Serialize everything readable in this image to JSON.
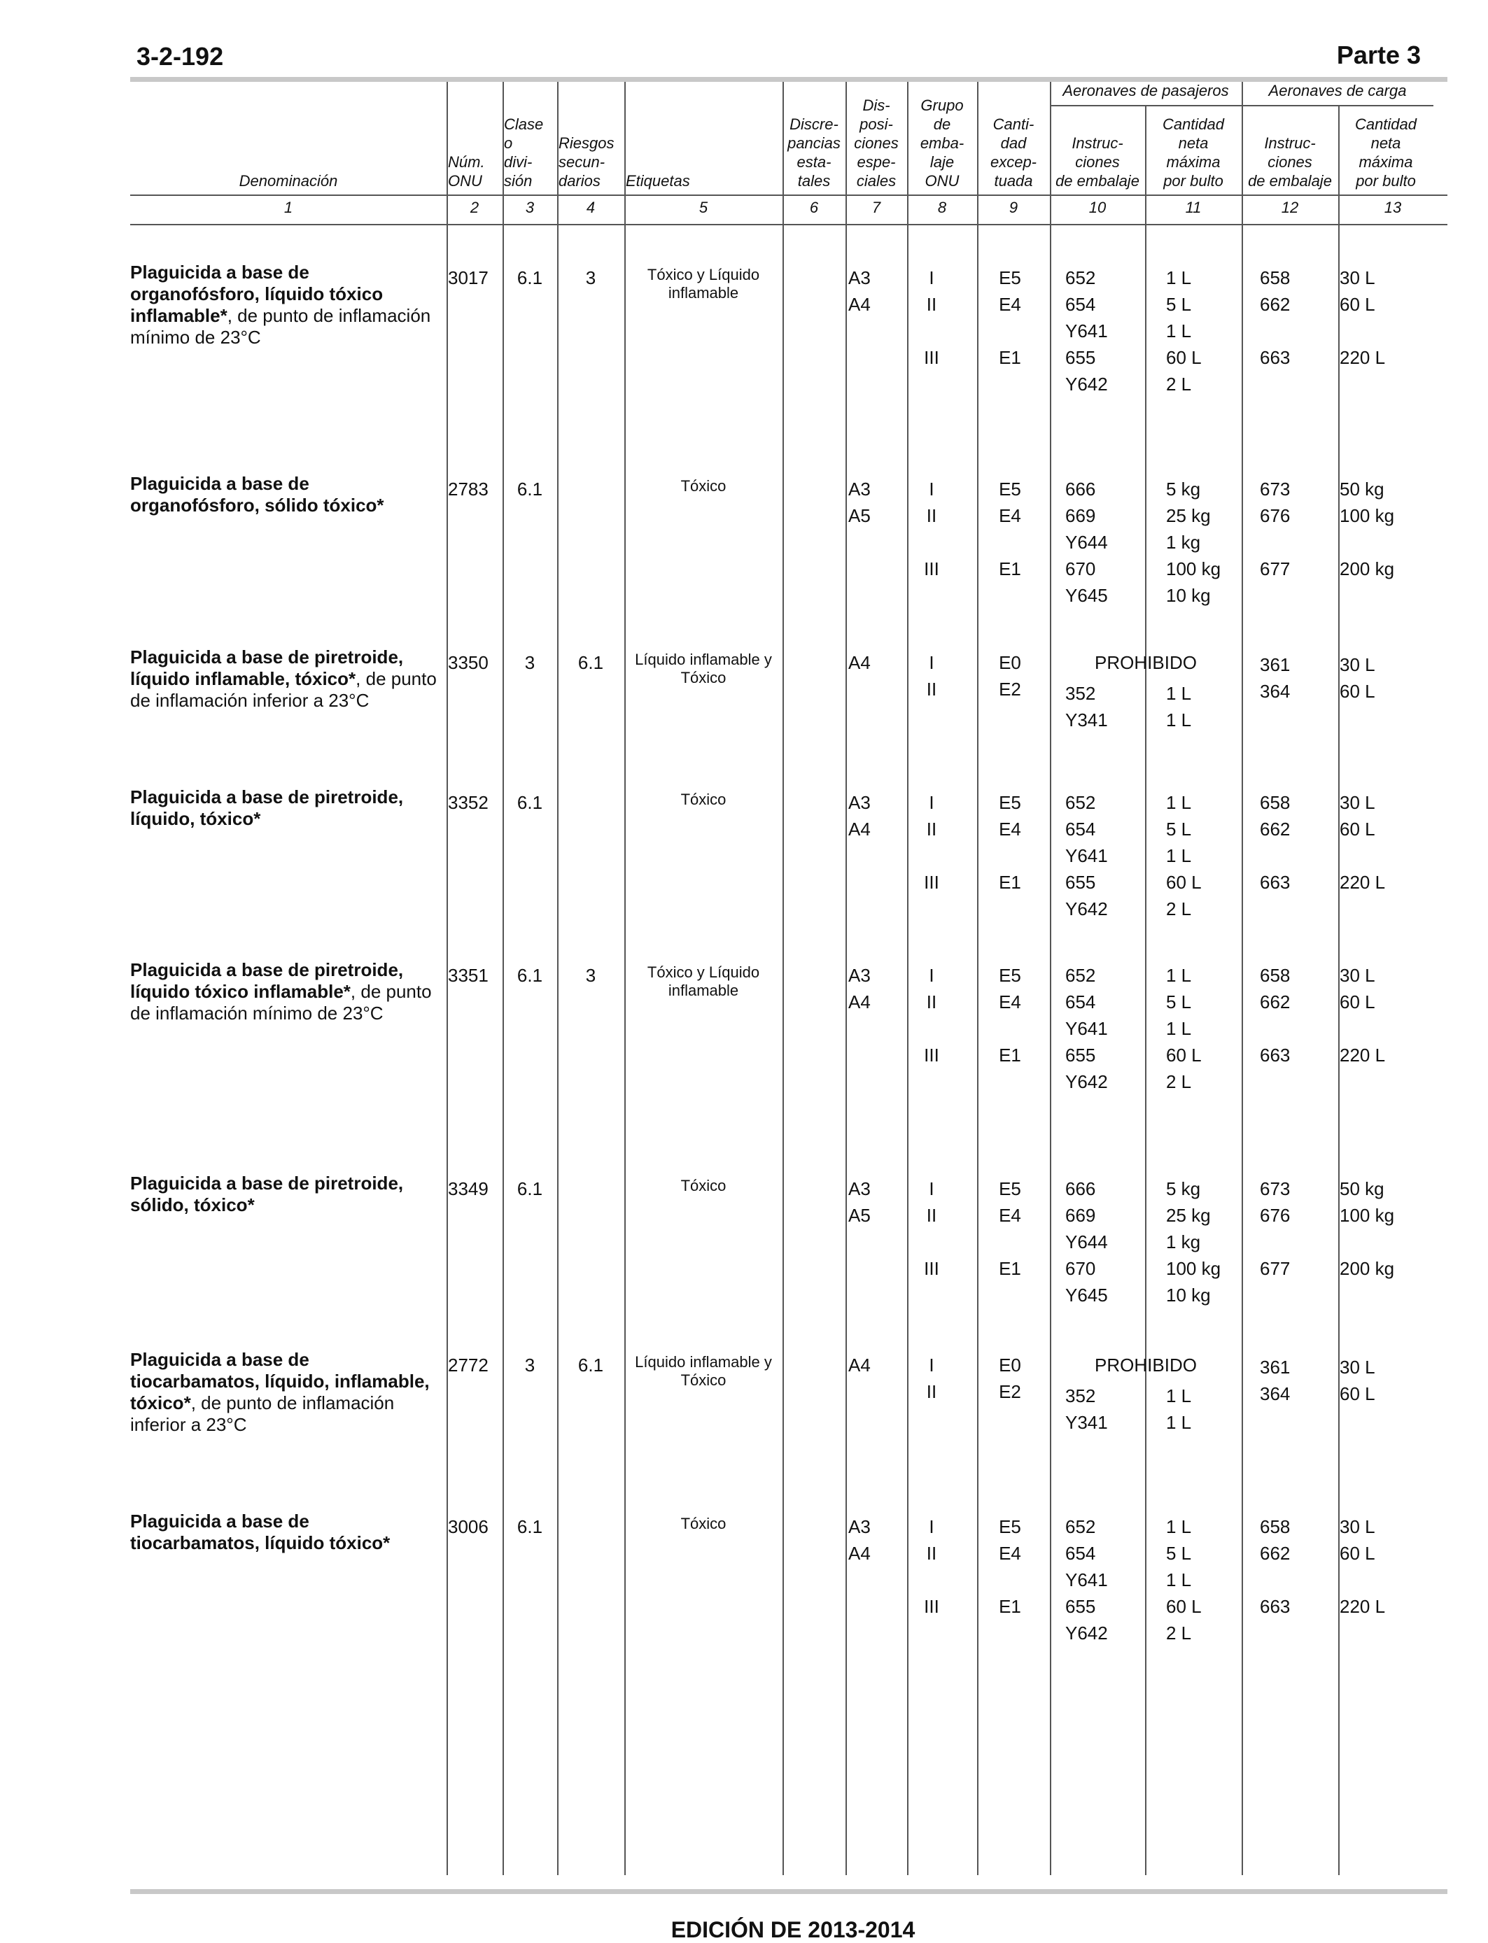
{
  "header": {
    "page_number": "3-2-192",
    "part": "Parte 3"
  },
  "footer": {
    "edition": "EDICIÓN DE 2013-2014"
  },
  "table": {
    "group_passengers": "Aeronaves de pasajeros",
    "group_cargo": "Aeronaves de carga",
    "columns": [
      {
        "num": "1",
        "label": "Denominación"
      },
      {
        "num": "2",
        "label": "Núm.\nONU"
      },
      {
        "num": "3",
        "label": "Clase\no\ndivi-\nsión"
      },
      {
        "num": "4",
        "label": "Riesgos\nsecun-\ndarios"
      },
      {
        "num": "5",
        "label": "Etiquetas"
      },
      {
        "num": "6",
        "label": "Discre-\npancias\nesta-\ntales"
      },
      {
        "num": "7",
        "label": "Dis-\nposi-\nciones\nespe-\nciales"
      },
      {
        "num": "8",
        "label": "Grupo\nde\nemba-\nlaje\nONU"
      },
      {
        "num": "9",
        "label": "Canti-\ndad\nexcep-\ntuada"
      },
      {
        "num": "10",
        "label": "Instruc-\nciones\nde embalaje"
      },
      {
        "num": "11",
        "label": "Cantidad\nneta\nmáxima\npor bulto"
      },
      {
        "num": "12",
        "label": "Instruc-\nciones\nde embalaje"
      },
      {
        "num": "13",
        "label": "Cantidad\nneta\nmáxima\npor bulto"
      }
    ],
    "rows": [
      {
        "name_bold": "Plaguicida a base de organofósforo, líquido tóxico inflamable*",
        "name_rest": ", de punto de inflamación mínimo de 23°C",
        "un": "3017",
        "class": "6.1",
        "sub": "3",
        "labels": "Tóxico y Líquido inflamable",
        "sp": [
          "A3",
          "A4"
        ],
        "pg": [
          "I",
          "II",
          "",
          "III"
        ],
        "eq": [
          "E5",
          "E4",
          "",
          "E1"
        ],
        "pax_pi": [
          "652",
          "654",
          "Y641",
          "655",
          "Y642"
        ],
        "pax_q": [
          "1 L",
          "5 L",
          "1 L",
          "60 L",
          "2 L"
        ],
        "cao_pi": [
          "658",
          "662",
          "",
          "663"
        ],
        "cao_q": [
          "30 L",
          "60 L",
          "",
          "220 L"
        ]
      },
      {
        "name_bold": "Plaguicida a base de organofósforo, sólido tóxico*",
        "name_rest": "",
        "un": "2783",
        "class": "6.1",
        "sub": "",
        "labels": "Tóxico",
        "sp": [
          "A3",
          "A5"
        ],
        "pg": [
          "I",
          "II",
          "",
          "III"
        ],
        "eq": [
          "E5",
          "E4",
          "",
          "E1"
        ],
        "pax_pi": [
          "666",
          "669",
          "Y644",
          "670",
          "Y645"
        ],
        "pax_q": [
          "5 kg",
          "25 kg",
          "1 kg",
          "100 kg",
          "10 kg"
        ],
        "cao_pi": [
          "673",
          "676",
          "",
          "677"
        ],
        "cao_q": [
          "50 kg",
          "100 kg",
          "",
          "200 kg"
        ]
      },
      {
        "name_bold": "Plaguicida a base de piretroide, líquido inflamable, tóxico*",
        "name_rest": ", de punto de inflamación inferior a 23°C",
        "un": "3350",
        "class": "3",
        "sub": "6.1",
        "labels": "Líquido inflamable y Tóxico",
        "sp": [
          "A4"
        ],
        "pg": [
          "I",
          "II"
        ],
        "eq": [
          "E0",
          "E2"
        ],
        "prohibited": "PROHIBIDO",
        "pax_pi": [
          "",
          "352",
          "Y341"
        ],
        "pax_q": [
          "",
          "1 L",
          "1 L"
        ],
        "cao_pi": [
          "361",
          "364"
        ],
        "cao_q": [
          "30 L",
          "60 L"
        ]
      },
      {
        "name_bold": "Plaguicida a base de piretroide, líquido, tóxico*",
        "name_rest": "",
        "un": "3352",
        "class": "6.1",
        "sub": "",
        "labels": "Tóxico",
        "sp": [
          "A3",
          "A4"
        ],
        "pg": [
          "I",
          "II",
          "",
          "III"
        ],
        "eq": [
          "E5",
          "E4",
          "",
          "E1"
        ],
        "pax_pi": [
          "652",
          "654",
          "Y641",
          "655",
          "Y642"
        ],
        "pax_q": [
          "1 L",
          "5 L",
          "1 L",
          "60 L",
          "2 L"
        ],
        "cao_pi": [
          "658",
          "662",
          "",
          "663"
        ],
        "cao_q": [
          "30 L",
          "60 L",
          "",
          "220 L"
        ]
      },
      {
        "name_bold": "Plaguicida a base de piretroide, líquido tóxico inflamable*",
        "name_rest": ", de punto de inflamación mínimo de 23°C",
        "un": "3351",
        "class": "6.1",
        "sub": "3",
        "labels": "Tóxico y Líquido inflamable",
        "sp": [
          "A3",
          "A4"
        ],
        "pg": [
          "I",
          "II",
          "",
          "III"
        ],
        "eq": [
          "E5",
          "E4",
          "",
          "E1"
        ],
        "pax_pi": [
          "652",
          "654",
          "Y641",
          "655",
          "Y642"
        ],
        "pax_q": [
          "1 L",
          "5 L",
          "1 L",
          "60 L",
          "2 L"
        ],
        "cao_pi": [
          "658",
          "662",
          "",
          "663"
        ],
        "cao_q": [
          "30 L",
          "60 L",
          "",
          "220 L"
        ]
      },
      {
        "name_bold": "Plaguicida a base de piretroide, sólido, tóxico*",
        "name_rest": "",
        "un": "3349",
        "class": "6.1",
        "sub": "",
        "labels": "Tóxico",
        "sp": [
          "A3",
          "A5"
        ],
        "pg": [
          "I",
          "II",
          "",
          "III"
        ],
        "eq": [
          "E5",
          "E4",
          "",
          "E1"
        ],
        "pax_pi": [
          "666",
          "669",
          "Y644",
          "670",
          "Y645"
        ],
        "pax_q": [
          "5 kg",
          "25 kg",
          "1 kg",
          "100 kg",
          "10 kg"
        ],
        "cao_pi": [
          "673",
          "676",
          "",
          "677"
        ],
        "cao_q": [
          "50 kg",
          "100 kg",
          "",
          "200 kg"
        ]
      },
      {
        "name_bold": "Plaguicida a base de tiocarbamatos, líquido, inflamable, tóxico*",
        "name_rest": ", de punto de inflamación inferior a 23°C",
        "un": "2772",
        "class": "3",
        "sub": "6.1",
        "labels": "Líquido inflamable y Tóxico",
        "sp": [
          "A4"
        ],
        "pg": [
          "I",
          "II"
        ],
        "eq": [
          "E0",
          "E2"
        ],
        "prohibited": "PROHIBIDO",
        "pax_pi": [
          "",
          "352",
          "Y341"
        ],
        "pax_q": [
          "",
          "1 L",
          "1 L"
        ],
        "cao_pi": [
          "361",
          "364"
        ],
        "cao_q": [
          "30 L",
          "60 L"
        ]
      },
      {
        "name_bold": "Plaguicida a base de tiocarbamatos, líquido tóxico*",
        "name_rest": "",
        "un": "3006",
        "class": "6.1",
        "sub": "",
        "labels": "Tóxico",
        "sp": [
          "A3",
          "A4"
        ],
        "pg": [
          "I",
          "II",
          "",
          "III"
        ],
        "eq": [
          "E5",
          "E4",
          "",
          "E1"
        ],
        "pax_pi": [
          "652",
          "654",
          "Y641",
          "655",
          "Y642"
        ],
        "pax_q": [
          "1 L",
          "5 L",
          "1 L",
          "60 L",
          "2 L"
        ],
        "cao_pi": [
          "658",
          "662",
          "",
          "663"
        ],
        "cao_q": [
          "30 L",
          "60 L",
          "",
          "220 L"
        ]
      }
    ]
  }
}
